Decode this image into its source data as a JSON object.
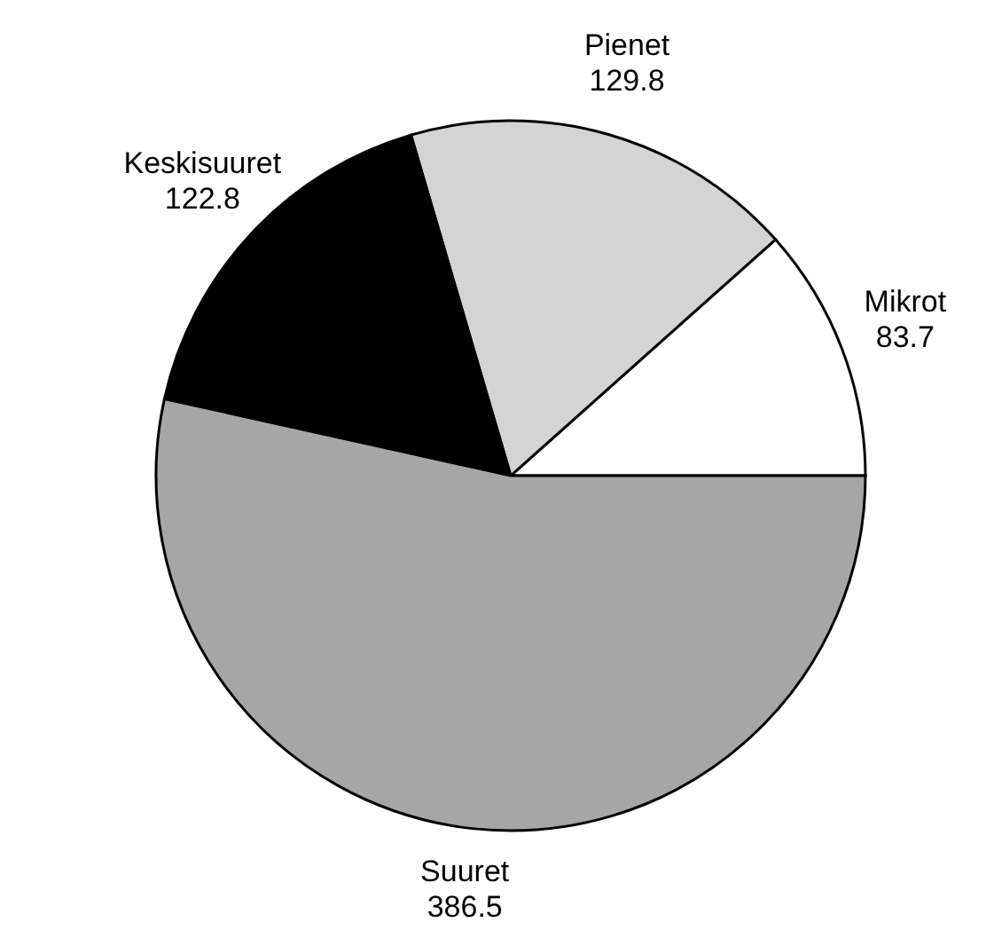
{
  "chart_data": {
    "type": "pie",
    "categories": [
      "Mikrot",
      "Pienet",
      "Keskisuuret",
      "Suuret"
    ],
    "values": [
      83.7,
      129.8,
      122.8,
      386.5
    ],
    "colors": [
      "#ffffff",
      "#d4d4d4",
      "#000000",
      "#a6a6a6"
    ],
    "data_labels": true
  }
}
